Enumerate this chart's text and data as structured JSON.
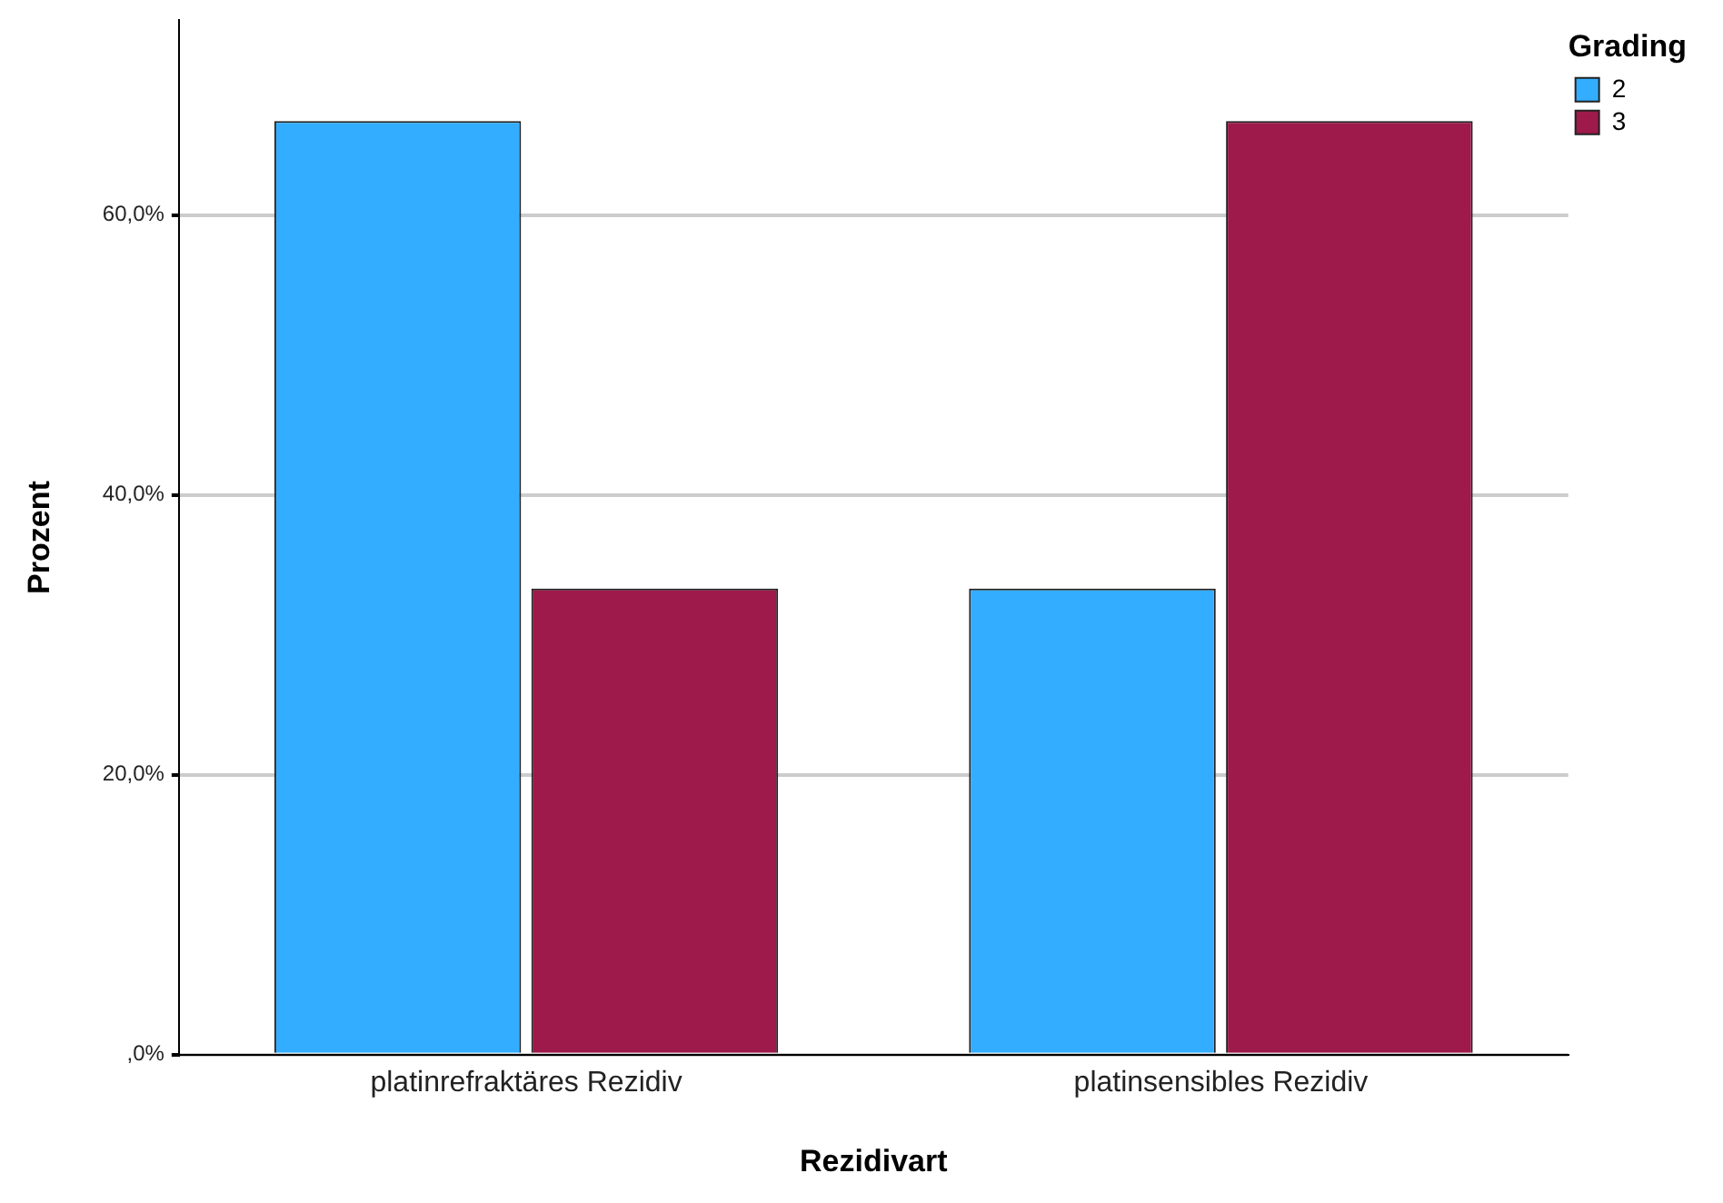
{
  "chart_data": {
    "type": "bar",
    "xlabel": "Rezidivart",
    "ylabel": "Prozent",
    "legend_title": "Grading",
    "categories": [
      "platinrefraktäres Rezidiv",
      "platinsensibles Rezidiv"
    ],
    "series": [
      {
        "name": "2",
        "color": "#33adff",
        "values": [
          66.7,
          33.3
        ]
      },
      {
        "name": "3",
        "color": "#9e1a4a",
        "values": [
          33.3,
          66.7
        ]
      }
    ],
    "ylim": [
      0,
      73.9
    ],
    "yticks": [
      {
        "value": 0,
        "label": ",0%"
      },
      {
        "value": 20,
        "label": "20,0%"
      },
      {
        "value": 40,
        "label": "40,0%"
      },
      {
        "value": 60,
        "label": "60,0%"
      }
    ],
    "grid": "y",
    "legend": "top right"
  }
}
